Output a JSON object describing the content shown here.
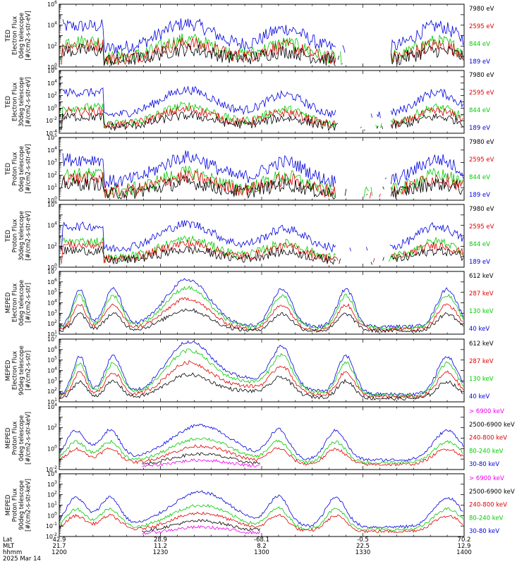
{
  "chart_data": [
    {
      "type": "line",
      "log_y": true,
      "ylabel_lines": [
        "TED",
        "Electron Flux",
        "0deg telescope",
        "[#/cm2-s-str-eV]"
      ],
      "y_exp_range": [
        0,
        6
      ],
      "y_exp_step": 2,
      "legend": [
        {
          "label": "7980 eV",
          "color": "#000000"
        },
        {
          "label": "2595 eV",
          "color": "#e00000"
        },
        {
          "label": "844 eV",
          "color": "#00cc00"
        },
        {
          "label": "189 eV",
          "color": "#0000dd"
        }
      ]
    },
    {
      "type": "line",
      "log_y": true,
      "ylabel_lines": [
        "TED",
        "Electron Flux",
        "30deg telescope",
        "[#/cm2-s-str-eV]"
      ],
      "y_exp_range": [
        -4,
        6
      ],
      "y_exp_step": 2,
      "legend": [
        {
          "label": "7980 eV",
          "color": "#000000"
        },
        {
          "label": "2595 eV",
          "color": "#e00000"
        },
        {
          "label": "844 eV",
          "color": "#00cc00"
        },
        {
          "label": "189 eV",
          "color": "#0000dd"
        }
      ]
    },
    {
      "type": "line",
      "log_y": true,
      "ylabel_lines": [
        "TED",
        "Proton Flux",
        "0deg telescope",
        "[#/cm2-s-str-eV]"
      ],
      "y_exp_range": [
        0,
        5
      ],
      "y_exp_step": 1,
      "legend": [
        {
          "label": "7980 eV",
          "color": "#000000"
        },
        {
          "label": "2595 eV",
          "color": "#e00000"
        },
        {
          "label": "844 eV",
          "color": "#00cc00"
        },
        {
          "label": "189 eV",
          "color": "#0000dd"
        }
      ]
    },
    {
      "type": "line",
      "log_y": true,
      "ylabel_lines": [
        "TED",
        "Proton Flux",
        "30deg telescope",
        "[#/cm2-s-str-eV]"
      ],
      "y_exp_range": [
        0,
        6
      ],
      "y_exp_step": 2,
      "legend": [
        {
          "label": "7980 eV",
          "color": "#000000"
        },
        {
          "label": "2595 eV",
          "color": "#e00000"
        },
        {
          "label": "844 eV",
          "color": "#00cc00"
        },
        {
          "label": "189 eV",
          "color": "#0000dd"
        }
      ]
    },
    {
      "type": "line",
      "log_y": true,
      "ylabel_lines": [
        "MEPED",
        "Electron Flux",
        "0deg telescope",
        "[#/cm2-s-str]"
      ],
      "y_exp_range": [
        1,
        7
      ],
      "y_exp_step": 1,
      "legend": [
        {
          "label": "612 keV",
          "color": "#000000"
        },
        {
          "label": "287 keV",
          "color": "#e00000"
        },
        {
          "label": "130 keV",
          "color": "#00cc00"
        },
        {
          "label": "40 keV",
          "color": "#0000dd"
        }
      ]
    },
    {
      "type": "line",
      "log_y": true,
      "ylabel_lines": [
        "MEPED",
        "Electron Flux",
        "90deg telescope",
        "[#/cm2-s-str]"
      ],
      "y_exp_range": [
        1,
        7
      ],
      "y_exp_step": 1,
      "legend": [
        {
          "label": "612 keV",
          "color": "#000000"
        },
        {
          "label": "287 keV",
          "color": "#e00000"
        },
        {
          "label": "130 keV",
          "color": "#00cc00"
        },
        {
          "label": "40 keV",
          "color": "#0000dd"
        }
      ]
    },
    {
      "type": "line",
      "log_y": true,
      "ylabel_lines": [
        "MEPED",
        "Proton Flux",
        "0deg telescope",
        "[#/cm2-s-str-keV]"
      ],
      "y_exp_range": [
        -2,
        4
      ],
      "y_exp_step": 2,
      "legend": [
        {
          "label": "> 6900 keV",
          "color": "#ee00ee"
        },
        {
          "label": "2500-6900 keV",
          "color": "#000000"
        },
        {
          "label": "240-800 keV",
          "color": "#e00000"
        },
        {
          "label": "80-240 keV",
          "color": "#00cc00"
        },
        {
          "label": "30-80 keV",
          "color": "#0000dd"
        }
      ]
    },
    {
      "type": "line",
      "log_y": true,
      "ylabel_lines": [
        "MEPED",
        "Proton Flux",
        "90deg telescope",
        "[#/cm2-s-str-keV]"
      ],
      "y_exp_range": [
        -2,
        4
      ],
      "y_exp_step": 1,
      "legend": [
        {
          "label": "> 6900 keV",
          "color": "#ee00ee"
        },
        {
          "label": "2500-6900 keV",
          "color": "#000000"
        },
        {
          "label": "240-800 keV",
          "color": "#e00000"
        },
        {
          "label": "80-240 keV",
          "color": "#00cc00"
        },
        {
          "label": "30-80 keV",
          "color": "#0000dd"
        }
      ]
    }
  ],
  "x_axis": {
    "minutes": [
      0,
      30,
      60,
      90,
      120
    ],
    "row_labels": [
      "Lat",
      "MLT",
      "hhmm",
      "2025 Mar 14"
    ],
    "ticks": [
      {
        "lat": "42.9",
        "mlt": "21.7",
        "hhmm": "1200"
      },
      {
        "lat": "28.9",
        "mlt": "11.2",
        "hhmm": "1230"
      },
      {
        "lat": "-68.1",
        "mlt": "8.2",
        "hhmm": "1300"
      },
      {
        "lat": "-0.5",
        "mlt": "22.5",
        "hhmm": "1330"
      },
      {
        "lat": "70.2",
        "mlt": "12.9",
        "hhmm": "1400"
      }
    ]
  }
}
